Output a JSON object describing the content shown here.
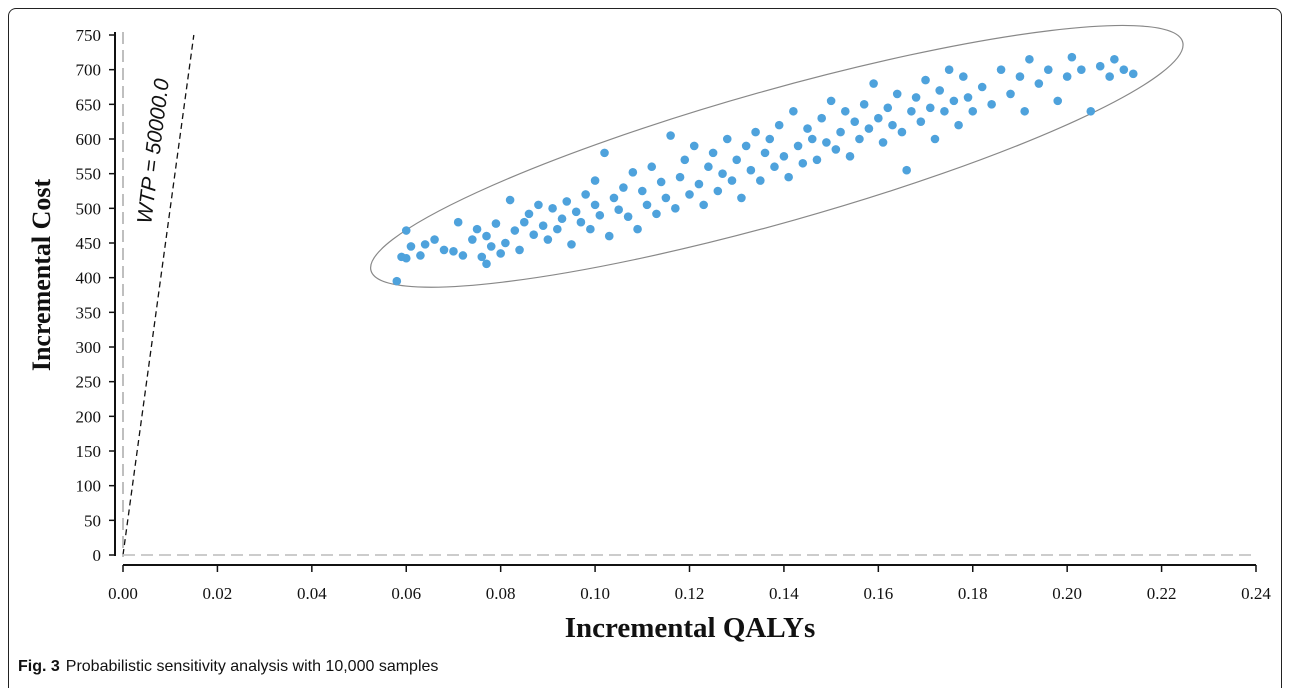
{
  "chart_data": {
    "type": "scatter",
    "title": "",
    "xlabel": "Incremental QALYs",
    "ylabel": "Incremental Cost",
    "xlim": [
      0,
      0.24
    ],
    "ylim": [
      0,
      750
    ],
    "x_ticks": [
      "0.00",
      "0.02",
      "0.04",
      "0.06",
      "0.08",
      "0.10",
      "0.12",
      "0.14",
      "0.16",
      "0.18",
      "0.20",
      "0.22",
      "0.24"
    ],
    "y_ticks": [
      "0",
      "50",
      "100",
      "150",
      "200",
      "250",
      "300",
      "350",
      "400",
      "450",
      "500",
      "550",
      "600",
      "650",
      "700",
      "750"
    ],
    "grid": false,
    "point_color": "#4ea2dc",
    "reference_lines": [
      {
        "label": "WTP = 50000.0",
        "style": "dashed",
        "points": [
          [
            0.0,
            0
          ],
          [
            0.015,
            750
          ]
        ]
      }
    ],
    "confidence_ellipse": {
      "center": [
        0.1385,
        575
      ],
      "style": "solid",
      "color": "#888888"
    },
    "points_summary": "approx. 900 sampled points concentrated along the band from (0.058, 395) to (0.214, 712)",
    "series": [
      {
        "points": [
          [
            0.058,
            395
          ],
          [
            0.059,
            430
          ],
          [
            0.06,
            468
          ],
          [
            0.06,
            428
          ],
          [
            0.061,
            445
          ],
          [
            0.063,
            432
          ],
          [
            0.064,
            448
          ],
          [
            0.066,
            455
          ],
          [
            0.068,
            440
          ],
          [
            0.07,
            438
          ],
          [
            0.071,
            480
          ],
          [
            0.072,
            432
          ],
          [
            0.074,
            455
          ],
          [
            0.075,
            470
          ],
          [
            0.076,
            430
          ],
          [
            0.077,
            460
          ],
          [
            0.077,
            420
          ],
          [
            0.078,
            445
          ],
          [
            0.079,
            478
          ],
          [
            0.08,
            435
          ],
          [
            0.081,
            450
          ],
          [
            0.082,
            512
          ],
          [
            0.083,
            468
          ],
          [
            0.084,
            440
          ],
          [
            0.085,
            480
          ],
          [
            0.086,
            492
          ],
          [
            0.087,
            462
          ],
          [
            0.088,
            505
          ],
          [
            0.089,
            475
          ],
          [
            0.09,
            455
          ],
          [
            0.091,
            500
          ],
          [
            0.092,
            470
          ],
          [
            0.093,
            485
          ],
          [
            0.094,
            510
          ],
          [
            0.095,
            448
          ],
          [
            0.096,
            495
          ],
          [
            0.097,
            480
          ],
          [
            0.098,
            520
          ],
          [
            0.099,
            470
          ],
          [
            0.1,
            505
          ],
          [
            0.1,
            540
          ],
          [
            0.101,
            490
          ],
          [
            0.102,
            580
          ],
          [
            0.103,
            460
          ],
          [
            0.104,
            515
          ],
          [
            0.105,
            498
          ],
          [
            0.106,
            530
          ],
          [
            0.107,
            488
          ],
          [
            0.108,
            552
          ],
          [
            0.109,
            470
          ],
          [
            0.11,
            525
          ],
          [
            0.111,
            505
          ],
          [
            0.112,
            560
          ],
          [
            0.113,
            492
          ],
          [
            0.114,
            538
          ],
          [
            0.115,
            515
          ],
          [
            0.116,
            605
          ],
          [
            0.117,
            500
          ],
          [
            0.118,
            545
          ],
          [
            0.119,
            570
          ],
          [
            0.12,
            520
          ],
          [
            0.121,
            590
          ],
          [
            0.122,
            535
          ],
          [
            0.123,
            505
          ],
          [
            0.124,
            560
          ],
          [
            0.125,
            580
          ],
          [
            0.126,
            525
          ],
          [
            0.127,
            550
          ],
          [
            0.128,
            600
          ],
          [
            0.129,
            540
          ],
          [
            0.13,
            570
          ],
          [
            0.131,
            515
          ],
          [
            0.132,
            590
          ],
          [
            0.133,
            555
          ],
          [
            0.134,
            610
          ],
          [
            0.135,
            540
          ],
          [
            0.136,
            580
          ],
          [
            0.137,
            600
          ],
          [
            0.138,
            560
          ],
          [
            0.139,
            620
          ],
          [
            0.14,
            575
          ],
          [
            0.141,
            545
          ],
          [
            0.142,
            640
          ],
          [
            0.143,
            590
          ],
          [
            0.144,
            565
          ],
          [
            0.145,
            615
          ],
          [
            0.146,
            600
          ],
          [
            0.147,
            570
          ],
          [
            0.148,
            630
          ],
          [
            0.149,
            595
          ],
          [
            0.15,
            655
          ],
          [
            0.151,
            585
          ],
          [
            0.152,
            610
          ],
          [
            0.153,
            640
          ],
          [
            0.154,
            575
          ],
          [
            0.155,
            625
          ],
          [
            0.156,
            600
          ],
          [
            0.157,
            650
          ],
          [
            0.158,
            615
          ],
          [
            0.159,
            680
          ],
          [
            0.16,
            630
          ],
          [
            0.161,
            595
          ],
          [
            0.162,
            645
          ],
          [
            0.163,
            620
          ],
          [
            0.164,
            665
          ],
          [
            0.165,
            610
          ],
          [
            0.166,
            555
          ],
          [
            0.167,
            640
          ],
          [
            0.168,
            660
          ],
          [
            0.169,
            625
          ],
          [
            0.17,
            685
          ],
          [
            0.171,
            645
          ],
          [
            0.172,
            600
          ],
          [
            0.173,
            670
          ],
          [
            0.174,
            640
          ],
          [
            0.175,
            700
          ],
          [
            0.176,
            655
          ],
          [
            0.177,
            620
          ],
          [
            0.178,
            690
          ],
          [
            0.179,
            660
          ],
          [
            0.18,
            640
          ],
          [
            0.182,
            675
          ],
          [
            0.184,
            650
          ],
          [
            0.186,
            700
          ],
          [
            0.188,
            665
          ],
          [
            0.19,
            690
          ],
          [
            0.191,
            640
          ],
          [
            0.192,
            715
          ],
          [
            0.194,
            680
          ],
          [
            0.196,
            700
          ],
          [
            0.198,
            655
          ],
          [
            0.2,
            690
          ],
          [
            0.201,
            718
          ],
          [
            0.203,
            700
          ],
          [
            0.205,
            640
          ],
          [
            0.207,
            705
          ],
          [
            0.209,
            690
          ],
          [
            0.21,
            715
          ],
          [
            0.212,
            700
          ],
          [
            0.214,
            694
          ]
        ]
      }
    ]
  },
  "caption": {
    "label": "Fig. 3",
    "text": "Probabilistic sensitivity analysis with 10,000 samples"
  }
}
